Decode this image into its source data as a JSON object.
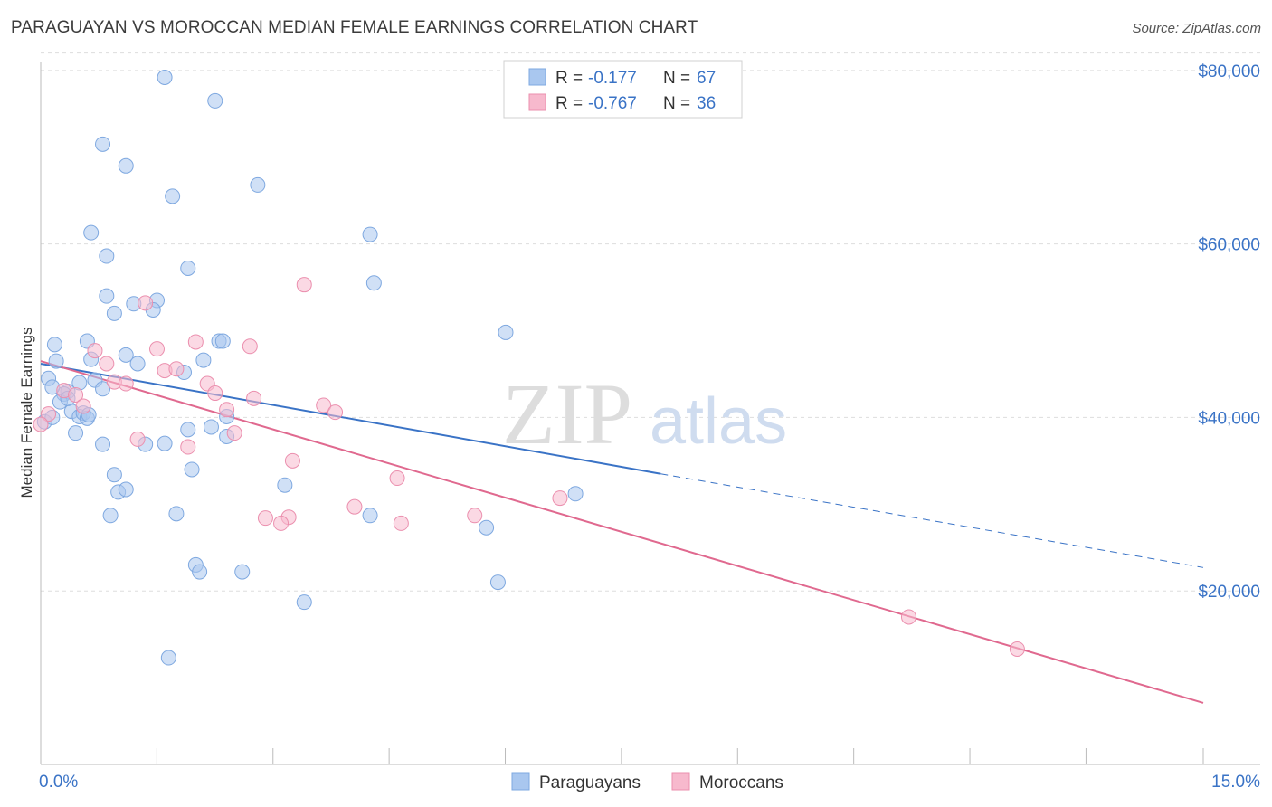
{
  "header": {
    "title": "PARAGUAYAN VS MOROCCAN MEDIAN FEMALE EARNINGS CORRELATION CHART",
    "source": "Source: ZipAtlas.com"
  },
  "watermark": {
    "zip": "ZIP",
    "atlas": "atlas"
  },
  "legend_top": {
    "rows": [
      {
        "r_label": "R =",
        "r_value": "-0.177",
        "n_label": "N =",
        "n_value": "67"
      },
      {
        "r_label": "R =",
        "r_value": "-0.767",
        "n_label": "N =",
        "n_value": "36"
      }
    ]
  },
  "legend_bottom": {
    "items": [
      "Paraguayans",
      "Moroccans"
    ]
  },
  "colors": {
    "paraguayan_fill": "#a9c7ef",
    "paraguayan_stroke": "#7ea8e0",
    "paraguayan_line": "#3a73c6",
    "moroccan_fill": "#f7b9cd",
    "moroccan_stroke": "#eb8fae",
    "moroccan_line": "#e0698f",
    "grid": "#dddddd",
    "axis_label": "#3a73c6"
  },
  "chart_data": {
    "type": "scatter",
    "title": "PARAGUAYAN VS MOROCCAN MEDIAN FEMALE EARNINGS CORRELATION CHART",
    "xlabel": "",
    "ylabel": "Median Female Earnings",
    "xlim": [
      0,
      15
    ],
    "ylim": [
      0,
      82000
    ],
    "x_tick_labels": [
      "0.0%",
      "15.0%"
    ],
    "y_ticks": [
      20000,
      40000,
      60000,
      80000
    ],
    "y_tick_labels": [
      "$20,000",
      "$40,000",
      "$60,000",
      "$80,000"
    ],
    "grid": true,
    "legend_position": "top-center",
    "series": [
      {
        "name": "Paraguayans",
        "r": -0.177,
        "n": 67,
        "trend": {
          "x": [
            0,
            8.0
          ],
          "y": [
            46200,
            33500
          ],
          "dashed_to": [
            15.0,
            22700
          ]
        },
        "points": [
          [
            1.6,
            79200
          ],
          [
            2.25,
            76500
          ],
          [
            0.8,
            71500
          ],
          [
            1.1,
            69000
          ],
          [
            1.7,
            65500
          ],
          [
            2.8,
            66800
          ],
          [
            0.65,
            61300
          ],
          [
            4.25,
            61100
          ],
          [
            0.85,
            58600
          ],
          [
            1.9,
            57200
          ],
          [
            4.3,
            55500
          ],
          [
            0.85,
            54000
          ],
          [
            1.2,
            53100
          ],
          [
            1.5,
            53500
          ],
          [
            1.45,
            52400
          ],
          [
            0.95,
            52000
          ],
          [
            6.0,
            49800
          ],
          [
            0.18,
            48400
          ],
          [
            0.6,
            48800
          ],
          [
            2.3,
            48800
          ],
          [
            2.35,
            48800
          ],
          [
            1.1,
            47200
          ],
          [
            0.2,
            46500
          ],
          [
            0.65,
            46700
          ],
          [
            1.25,
            46200
          ],
          [
            1.85,
            45200
          ],
          [
            2.1,
            46600
          ],
          [
            0.1,
            44500
          ],
          [
            0.5,
            44000
          ],
          [
            0.7,
            44300
          ],
          [
            0.8,
            43300
          ],
          [
            0.35,
            43000
          ],
          [
            0.3,
            42700
          ],
          [
            0.4,
            40700
          ],
          [
            0.5,
            40100
          ],
          [
            0.55,
            40500
          ],
          [
            0.6,
            39900
          ],
          [
            0.62,
            40300
          ],
          [
            0.05,
            39500
          ],
          [
            2.4,
            40100
          ],
          [
            1.9,
            38600
          ],
          [
            2.2,
            38900
          ],
          [
            0.45,
            38200
          ],
          [
            0.8,
            36900
          ],
          [
            1.35,
            36900
          ],
          [
            1.6,
            37000
          ],
          [
            2.4,
            37800
          ],
          [
            1.95,
            34000
          ],
          [
            0.95,
            33400
          ],
          [
            1.0,
            31400
          ],
          [
            1.1,
            31700
          ],
          [
            3.15,
            32200
          ],
          [
            6.9,
            31200
          ],
          [
            0.9,
            28700
          ],
          [
            1.75,
            28900
          ],
          [
            4.25,
            28700
          ],
          [
            5.75,
            27300
          ],
          [
            2.0,
            23000
          ],
          [
            2.05,
            22200
          ],
          [
            2.6,
            22200
          ],
          [
            5.9,
            21000
          ],
          [
            3.4,
            18700
          ],
          [
            1.65,
            12300
          ],
          [
            0.15,
            43500
          ],
          [
            0.25,
            41800
          ],
          [
            0.35,
            42200
          ],
          [
            0.15,
            40000
          ]
        ]
      },
      {
        "name": "Moroccans",
        "r": -0.767,
        "n": 36,
        "trend": {
          "x": [
            0,
            15.0
          ],
          "y": [
            46500,
            7100
          ]
        },
        "points": [
          [
            3.4,
            55300
          ],
          [
            1.35,
            53200
          ],
          [
            2.0,
            48700
          ],
          [
            2.7,
            48200
          ],
          [
            0.7,
            47700
          ],
          [
            1.5,
            47900
          ],
          [
            0.85,
            46200
          ],
          [
            1.6,
            45400
          ],
          [
            1.75,
            45600
          ],
          [
            0.95,
            44100
          ],
          [
            1.1,
            43900
          ],
          [
            2.15,
            43900
          ],
          [
            0.3,
            43100
          ],
          [
            2.25,
            42800
          ],
          [
            0.45,
            42600
          ],
          [
            2.75,
            42200
          ],
          [
            3.65,
            41400
          ],
          [
            0.55,
            41300
          ],
          [
            2.4,
            40900
          ],
          [
            3.8,
            40600
          ],
          [
            0.1,
            40400
          ],
          [
            0.0,
            39200
          ],
          [
            2.5,
            38200
          ],
          [
            1.25,
            37500
          ],
          [
            1.9,
            36600
          ],
          [
            3.25,
            35000
          ],
          [
            4.6,
            33000
          ],
          [
            6.7,
            30700
          ],
          [
            4.05,
            29700
          ],
          [
            2.9,
            28400
          ],
          [
            3.2,
            28500
          ],
          [
            3.1,
            27800
          ],
          [
            4.65,
            27800
          ],
          [
            5.6,
            28700
          ],
          [
            11.2,
            17000
          ],
          [
            12.6,
            13300
          ]
        ]
      }
    ]
  }
}
